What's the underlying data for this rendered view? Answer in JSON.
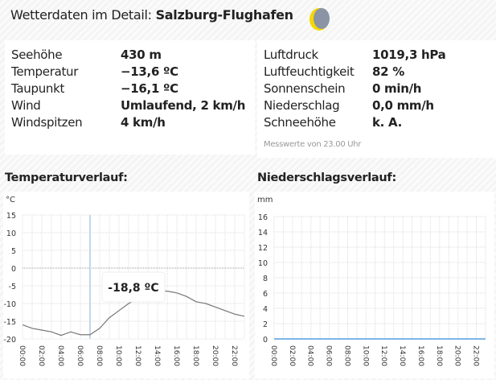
{
  "header": {
    "prefix": "Wetterdaten im Detail:",
    "station": "Salzburg-Flughafen",
    "weather_icon": "moon-partly-cloudy-icon"
  },
  "left_stats": [
    {
      "label": "Seehöhe",
      "value": "430 m"
    },
    {
      "label": "Temperatur",
      "value": "−13,6 ºC"
    },
    {
      "label": "Taupunkt",
      "value": "−16,1 ºC"
    },
    {
      "label": "Wind",
      "value": "Umlaufend, 2 km/h"
    },
    {
      "label": "Windspitzen",
      "value": "4 km/h"
    }
  ],
  "right_stats": [
    {
      "label": "Luftdruck",
      "value": "1019,3 hPa"
    },
    {
      "label": "Luftfeuchtigkeit",
      "value": "82 %"
    },
    {
      "label": "Sonnenschein",
      "value": "0 min/h"
    },
    {
      "label": "Niederschlag",
      "value": "0,0 mm/h"
    },
    {
      "label": "Schneehöhe",
      "value": "k. A."
    }
  ],
  "note": "Messwerte von 23.00 Uhr",
  "colors": {
    "temp_line": "#777777",
    "precip_line": "#7fb6e8",
    "crosshair": "#c5d8e6",
    "moon": "#f5d800",
    "cloud": "#8a94a4"
  },
  "chart_data": [
    {
      "type": "line",
      "title": "Temperaturverlauf:",
      "ylabel": "°C",
      "ylim": [
        -20,
        15
      ],
      "yticks": [
        15,
        10,
        5,
        0,
        -5,
        -10,
        -15,
        -20
      ],
      "x": [
        "00:00",
        "01:00",
        "02:00",
        "03:00",
        "04:00",
        "05:00",
        "06:00",
        "07:00",
        "08:00",
        "09:00",
        "10:00",
        "11:00",
        "12:00",
        "13:00",
        "14:00",
        "15:00",
        "16:00",
        "17:00",
        "18:00",
        "19:00",
        "20:00",
        "21:00",
        "22:00",
        "23:00"
      ],
      "xticks": [
        "00:00",
        "02:00",
        "04:00",
        "06:00",
        "08:00",
        "10:00",
        "12:00",
        "14:00",
        "16:00",
        "18:00",
        "20:00",
        "22:00"
      ],
      "values": [
        -16,
        -17,
        -17.5,
        -18,
        -19,
        -18,
        -18.8,
        -18.8,
        -17,
        -14,
        -12,
        -10,
        -8.5,
        -7,
        -6.5,
        -6.5,
        -7,
        -8,
        -9.5,
        -10,
        -11,
        -12,
        -13,
        -13.6
      ],
      "tooltip": {
        "index": 7,
        "text": "-18,8 ºC"
      }
    },
    {
      "type": "line",
      "title": "Niederschlagsverlauf:",
      "ylabel": "mm",
      "ylim": [
        0,
        16
      ],
      "yticks": [
        16,
        14,
        12,
        10,
        8,
        6,
        4,
        2,
        0
      ],
      "xticks": [
        "00:00",
        "02:00",
        "04:00",
        "06:00",
        "08:00",
        "10:00",
        "12:00",
        "14:00",
        "16:00",
        "18:00",
        "20:00",
        "22:00"
      ],
      "values": [
        0,
        0,
        0,
        0,
        0,
        0,
        0,
        0,
        0,
        0,
        0,
        0,
        0,
        0,
        0,
        0,
        0,
        0,
        0,
        0,
        0,
        0,
        0,
        0
      ]
    }
  ]
}
